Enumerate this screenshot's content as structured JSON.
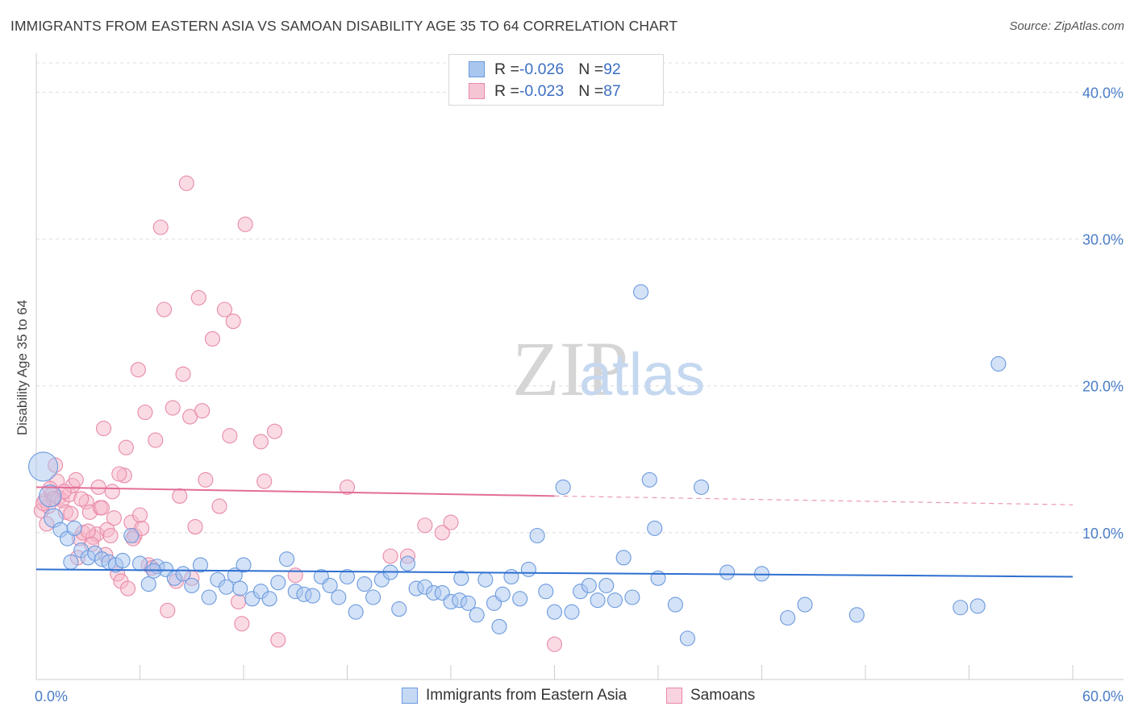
{
  "title": "IMMIGRANTS FROM EASTERN ASIA VS SAMOAN DISABILITY AGE 35 TO 64 CORRELATION CHART",
  "source": "Source: ZipAtlas.com",
  "watermark": {
    "zip": "ZIP",
    "atlas": "atlas"
  },
  "colors": {
    "blue_fill": "#a9c6ef",
    "blue_stroke": "#6b9ade",
    "blue_line": "#2e6fd0",
    "pink_fill": "#f5b7c9",
    "pink_stroke": "#e88aa8",
    "pink_line": "#e36d98",
    "grid": "#dddddd",
    "tick_text": "#4a7dc8"
  },
  "legend": {
    "rows": [
      {
        "r_label": "R = ",
        "r_value": "-0.026",
        "n_label": "N = ",
        "n_value": "92"
      },
      {
        "r_label": "R = ",
        "r_value": "-0.023",
        "n_label": "N = ",
        "n_value": "87"
      }
    ]
  },
  "bottom_legend": {
    "blue": "Immigrants from Eastern Asia",
    "pink": "Samoans"
  },
  "chart_data": {
    "type": "scatter",
    "title": "IMMIGRANTS FROM EASTERN ASIA VS SAMOAN DISABILITY AGE 35 TO 64 CORRELATION CHART",
    "xlabel": "",
    "ylabel": "Disability Age 35 to 64",
    "xlim": [
      0,
      60
    ],
    "ylim": [
      0,
      42
    ],
    "x_tick_labels": [
      "0.0%",
      "60.0%"
    ],
    "y_ticks": [
      10,
      20,
      30,
      40
    ],
    "y_tick_labels": [
      "10.0%",
      "20.0%",
      "30.0%",
      "40.0%"
    ],
    "grid": true,
    "series": [
      {
        "name": "Immigrants from Eastern Asia",
        "color": "blue",
        "trend": {
          "x": [
            0,
            60
          ],
          "y": [
            7.5,
            7.0
          ],
          "dashed_from": null
        },
        "points": [
          [
            0.4,
            14.5,
            2.0
          ],
          [
            0.8,
            12.5,
            1.5
          ],
          [
            1.0,
            11.0,
            1.3
          ],
          [
            1.4,
            10.2,
            1
          ],
          [
            1.8,
            9.6,
            1
          ],
          [
            2.2,
            10.3,
            1
          ],
          [
            2.6,
            8.8,
            1
          ],
          [
            3.0,
            8.3,
            1
          ],
          [
            3.4,
            8.6,
            1
          ],
          [
            3.8,
            8.2,
            1
          ],
          [
            4.2,
            8.0,
            1
          ],
          [
            4.6,
            7.8,
            1
          ],
          [
            5.0,
            8.1,
            1
          ],
          [
            5.5,
            9.8,
            1
          ],
          [
            6.0,
            7.9,
            1
          ],
          [
            6.5,
            6.5,
            1
          ],
          [
            7.0,
            7.7,
            1
          ],
          [
            7.5,
            7.5,
            1
          ],
          [
            8.0,
            6.9,
            1
          ],
          [
            8.5,
            7.2,
            1
          ],
          [
            9.0,
            6.4,
            1
          ],
          [
            9.5,
            7.8,
            1
          ],
          [
            10.0,
            5.6,
            1
          ],
          [
            10.5,
            6.8,
            1
          ],
          [
            11.0,
            6.3,
            1
          ],
          [
            11.5,
            7.1,
            1
          ],
          [
            12.0,
            7.8,
            1
          ],
          [
            12.5,
            5.5,
            1
          ],
          [
            13.0,
            6.0,
            1
          ],
          [
            13.5,
            5.5,
            1
          ],
          [
            14.0,
            6.6,
            1
          ],
          [
            14.5,
            8.2,
            1
          ],
          [
            15.0,
            6.0,
            1
          ],
          [
            15.5,
            5.8,
            1
          ],
          [
            16.0,
            5.7,
            1
          ],
          [
            16.5,
            7.0,
            1
          ],
          [
            17.0,
            6.4,
            1
          ],
          [
            17.5,
            5.6,
            1
          ],
          [
            18.0,
            7.0,
            1
          ],
          [
            18.5,
            4.6,
            1
          ],
          [
            19.0,
            6.5,
            1
          ],
          [
            19.5,
            5.6,
            1
          ],
          [
            20.0,
            6.8,
            1
          ],
          [
            20.5,
            7.3,
            1
          ],
          [
            21.0,
            4.8,
            1
          ],
          [
            21.5,
            7.9,
            1
          ],
          [
            22.0,
            6.2,
            1
          ],
          [
            22.5,
            6.3,
            1
          ],
          [
            23.0,
            5.9,
            1
          ],
          [
            23.5,
            5.9,
            1
          ],
          [
            24.0,
            5.3,
            1
          ],
          [
            24.5,
            5.4,
            1
          ],
          [
            25.0,
            5.2,
            1
          ],
          [
            25.5,
            4.4,
            1
          ],
          [
            26.0,
            6.8,
            1
          ],
          [
            26.5,
            5.2,
            1
          ],
          [
            27.0,
            5.8,
            1
          ],
          [
            27.5,
            7.0,
            1
          ],
          [
            28.0,
            5.5,
            1
          ],
          [
            28.5,
            7.5,
            1
          ],
          [
            29.0,
            9.8,
            1
          ],
          [
            29.5,
            6.0,
            1
          ],
          [
            30.0,
            4.6,
            1
          ],
          [
            30.5,
            13.1,
            1
          ],
          [
            31.0,
            4.6,
            1
          ],
          [
            31.5,
            6.0,
            1
          ],
          [
            32.0,
            6.4,
            1
          ],
          [
            32.5,
            5.4,
            1
          ],
          [
            33.0,
            6.4,
            1
          ],
          [
            33.5,
            5.4,
            1
          ],
          [
            34.0,
            8.3,
            1
          ],
          [
            34.5,
            5.6,
            1
          ],
          [
            35.0,
            26.4,
            1
          ],
          [
            35.5,
            13.6,
            1
          ],
          [
            35.8,
            10.3,
            1
          ],
          [
            36.0,
            6.9,
            1
          ],
          [
            37.0,
            5.1,
            1
          ],
          [
            37.7,
            2.8,
            1
          ],
          [
            38.5,
            13.1,
            1
          ],
          [
            40.0,
            7.3,
            1
          ],
          [
            42.0,
            7.2,
            1
          ],
          [
            43.5,
            4.2,
            1
          ],
          [
            44.5,
            5.1,
            1
          ],
          [
            47.5,
            4.4,
            1
          ],
          [
            53.5,
            4.9,
            1
          ],
          [
            54.5,
            5.0,
            1
          ],
          [
            55.7,
            21.5,
            1
          ],
          [
            2.0,
            8.0,
            1
          ],
          [
            6.8,
            7.4,
            1
          ],
          [
            11.8,
            6.2,
            1
          ],
          [
            26.8,
            3.6,
            1
          ],
          [
            24.6,
            6.9,
            1
          ]
        ]
      },
      {
        "name": "Samoans",
        "color": "pink",
        "trend": {
          "x": [
            0,
            60
          ],
          "y": [
            13.1,
            11.9
          ],
          "dashed_from": 30
        },
        "points": [
          [
            0.3,
            11.5,
            1
          ],
          [
            0.5,
            12.2,
            1
          ],
          [
            0.7,
            11.8,
            1
          ],
          [
            0.9,
            12.6,
            1
          ],
          [
            1.1,
            14.6,
            1
          ],
          [
            1.3,
            12.4,
            1
          ],
          [
            1.5,
            12.2,
            1
          ],
          [
            1.7,
            11.4,
            1
          ],
          [
            1.9,
            12.6,
            1
          ],
          [
            2.1,
            13.2,
            1
          ],
          [
            2.3,
            13.6,
            1
          ],
          [
            2.5,
            9.6,
            1
          ],
          [
            2.7,
            10.0,
            1
          ],
          [
            2.9,
            12.1,
            1
          ],
          [
            3.1,
            11.4,
            1
          ],
          [
            3.3,
            9.7,
            1
          ],
          [
            3.5,
            9.9,
            1
          ],
          [
            3.7,
            11.7,
            1
          ],
          [
            3.9,
            17.1,
            1
          ],
          [
            4.1,
            10.2,
            1
          ],
          [
            4.3,
            9.8,
            1
          ],
          [
            4.5,
            11.0,
            1
          ],
          [
            4.7,
            7.2,
            1
          ],
          [
            4.9,
            6.7,
            1
          ],
          [
            5.1,
            13.9,
            1
          ],
          [
            5.3,
            6.2,
            1
          ],
          [
            5.5,
            10.7,
            1
          ],
          [
            5.7,
            9.8,
            1
          ],
          [
            5.9,
            21.1,
            1
          ],
          [
            6.1,
            10.3,
            1
          ],
          [
            6.3,
            18.2,
            1
          ],
          [
            6.5,
            7.8,
            1
          ],
          [
            6.7,
            7.6,
            1
          ],
          [
            6.9,
            16.3,
            1
          ],
          [
            7.2,
            30.8,
            1
          ],
          [
            7.4,
            25.2,
            1
          ],
          [
            7.6,
            4.7,
            1
          ],
          [
            7.9,
            18.5,
            1
          ],
          [
            8.1,
            6.7,
            1
          ],
          [
            8.3,
            12.5,
            1
          ],
          [
            8.5,
            20.8,
            1
          ],
          [
            8.7,
            33.8,
            1
          ],
          [
            8.9,
            17.9,
            1
          ],
          [
            9.0,
            6.9,
            1
          ],
          [
            9.2,
            10.4,
            1
          ],
          [
            9.4,
            26.0,
            1
          ],
          [
            9.6,
            18.3,
            1
          ],
          [
            9.8,
            13.6,
            1
          ],
          [
            10.2,
            23.2,
            1
          ],
          [
            10.6,
            11.8,
            1
          ],
          [
            10.9,
            25.2,
            1
          ],
          [
            11.2,
            16.6,
            1
          ],
          [
            11.4,
            24.4,
            1
          ],
          [
            11.7,
            5.3,
            1
          ],
          [
            11.9,
            3.8,
            1
          ],
          [
            12.1,
            31.0,
            1
          ],
          [
            13.0,
            16.2,
            1
          ],
          [
            13.2,
            13.5,
            1
          ],
          [
            13.8,
            16.9,
            1
          ],
          [
            14.0,
            2.7,
            1
          ],
          [
            15.0,
            7.1,
            1
          ],
          [
            18.0,
            13.1,
            1
          ],
          [
            20.5,
            8.4,
            1
          ],
          [
            21.5,
            8.4,
            1
          ],
          [
            22.5,
            10.5,
            1
          ],
          [
            23.5,
            10.0,
            1
          ],
          [
            24.0,
            10.7,
            1
          ],
          [
            30.0,
            2.4,
            1
          ],
          [
            1.2,
            13.5,
            1
          ],
          [
            1.6,
            12.8,
            1
          ],
          [
            2.0,
            11.3,
            1
          ],
          [
            2.4,
            8.3,
            1
          ],
          [
            2.6,
            12.3,
            1
          ],
          [
            3.0,
            10.1,
            1
          ],
          [
            3.2,
            9.2,
            1
          ],
          [
            3.6,
            13.1,
            1
          ],
          [
            3.8,
            11.7,
            1
          ],
          [
            4.0,
            8.5,
            1
          ],
          [
            4.4,
            12.8,
            1
          ],
          [
            4.8,
            14.0,
            1
          ],
          [
            5.2,
            15.8,
            1
          ],
          [
            5.6,
            9.6,
            1
          ],
          [
            6.0,
            11.2,
            1
          ],
          [
            0.6,
            10.6,
            1
          ],
          [
            0.8,
            13.0,
            1
          ],
          [
            1.0,
            12.3,
            1
          ],
          [
            0.4,
            12.0,
            1
          ]
        ]
      }
    ]
  }
}
